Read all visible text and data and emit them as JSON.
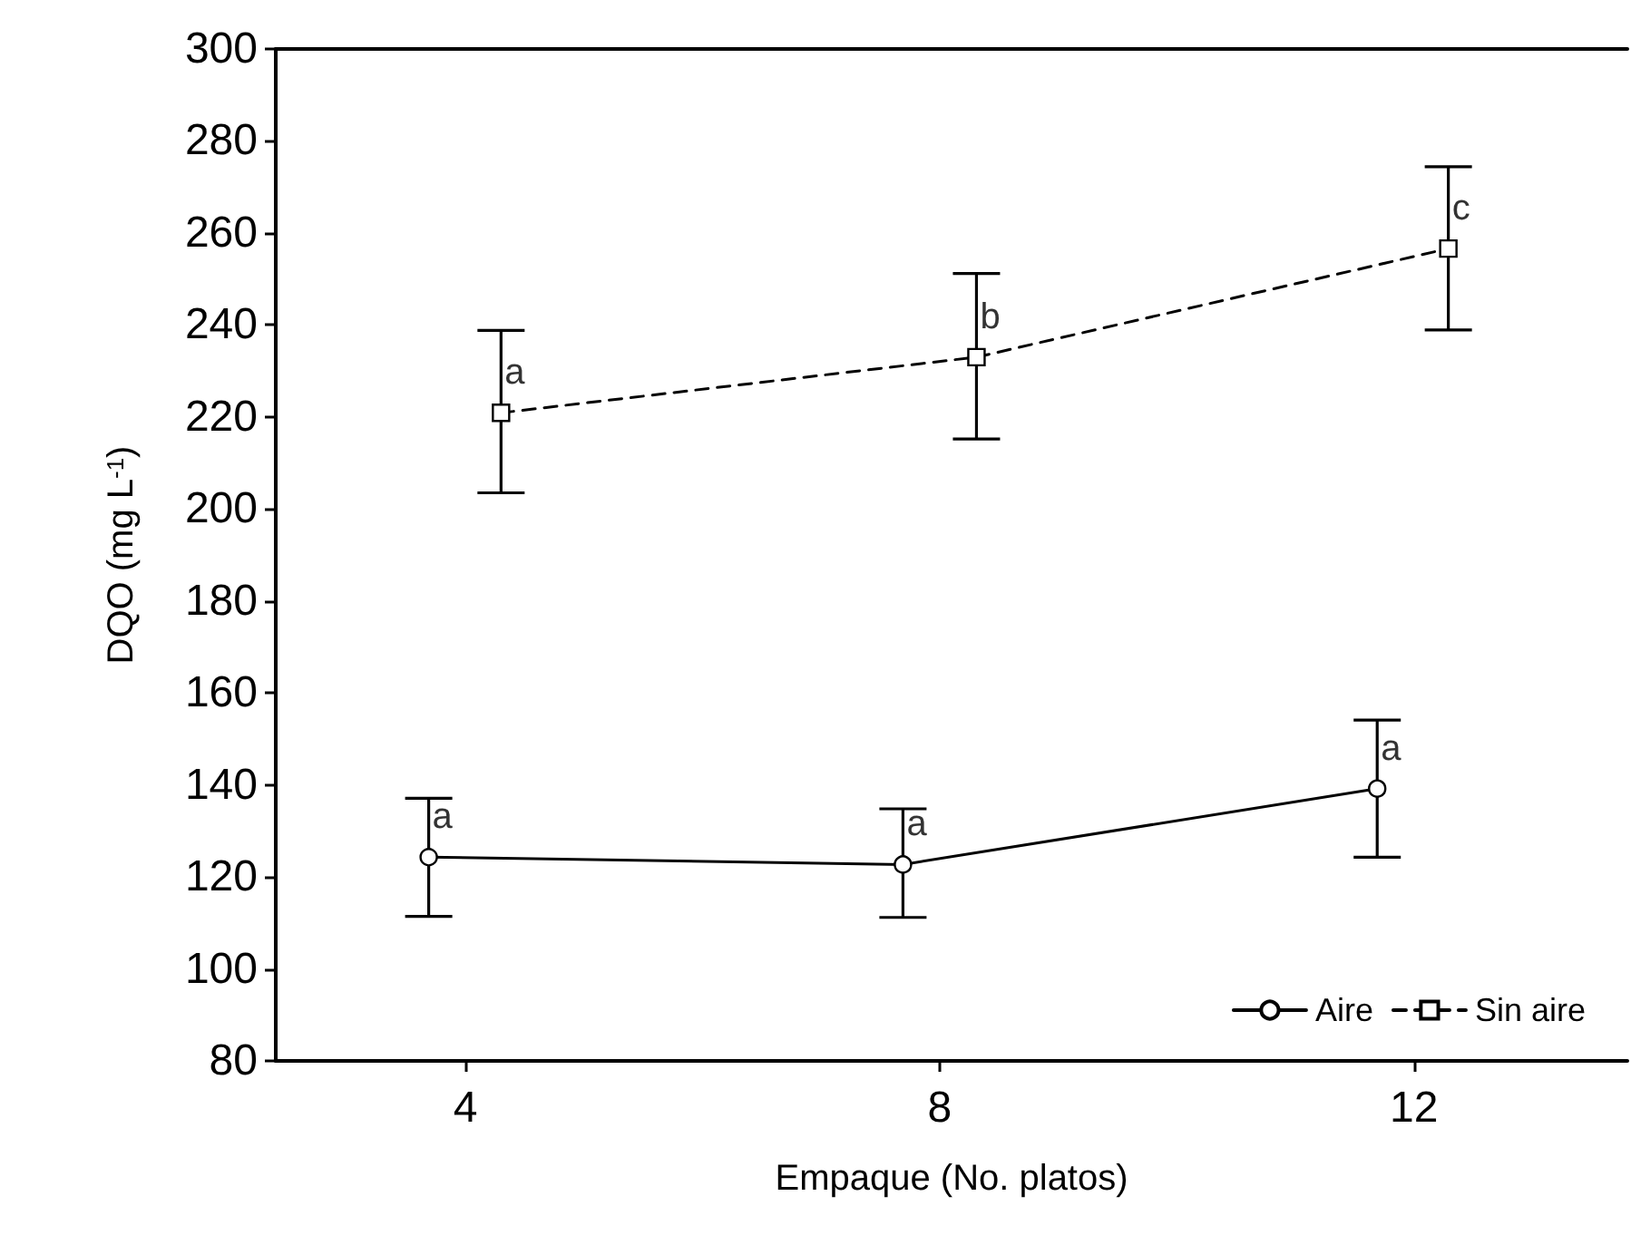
{
  "chart_data": {
    "type": "line",
    "xlabel": "Empaque (No. platos)",
    "ylabel": "DQO (mg L$^{-1}$)",
    "xlim": [
      2.4,
      13.8
    ],
    "xticks": [
      4,
      8,
      12
    ],
    "ylim": [
      80,
      300
    ],
    "yticks": [
      80,
      100,
      120,
      140,
      160,
      180,
      200,
      220,
      240,
      260,
      280,
      300
    ],
    "grid": false,
    "legend": "bottom right",
    "series": [
      {
        "name": "Aire",
        "color": "#000000",
        "marker": "circle",
        "line_style": "solid",
        "x": [
          3.69,
          7.69,
          11.69
        ],
        "values": [
          124.3,
          122.7,
          139.2
        ],
        "errors": [
          [
            111.4,
            137.1
          ],
          [
            111.2,
            134.8
          ],
          [
            124.3,
            154.1
          ]
        ]
      },
      {
        "name": "Sin aire",
        "color": "#000000",
        "marker": "square",
        "line_style": "dashed",
        "x": [
          4.3,
          8.31,
          12.29
        ],
        "values": [
          220.9,
          233,
          256.6
        ],
        "errors": [
          [
            203.5,
            238.8
          ],
          [
            215.2,
            251.2
          ],
          [
            238.9,
            274.4
          ]
        ]
      }
    ],
    "annotations": [
      {
        "text": "a",
        "x": 3.69,
        "y": 124.3
      },
      {
        "text": "a",
        "x": 7.69,
        "y": 122.7
      },
      {
        "text": "a",
        "x": 11.69,
        "y": 139.2
      },
      {
        "text": "a",
        "x": 4.3,
        "y": 220.9
      },
      {
        "text": "b",
        "x": 8.31,
        "y": 233
      },
      {
        "text": "c",
        "x": 12.29,
        "y": 256.6
      }
    ]
  }
}
